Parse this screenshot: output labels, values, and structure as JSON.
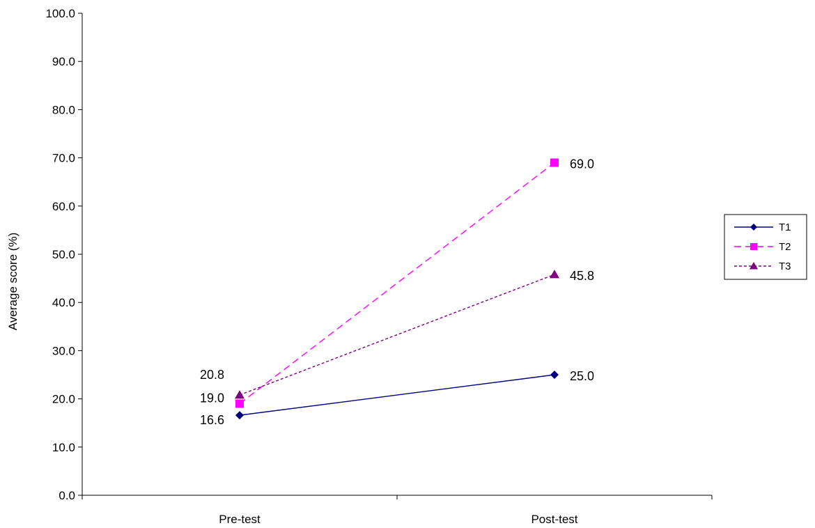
{
  "chart_data": {
    "type": "line",
    "ylabel": "Average score (%)",
    "xlabel": "",
    "ylim": [
      0,
      100
    ],
    "y_ticks": [
      "0.0",
      "10.0",
      "20.0",
      "30.0",
      "40.0",
      "50.0",
      "60.0",
      "70.0",
      "80.0",
      "90.0",
      "100.0"
    ],
    "categories": [
      "Pre-test",
      "Post-test"
    ],
    "grid": false,
    "legend_position": "right",
    "series": [
      {
        "name": "T1",
        "values": [
          16.6,
          25.0
        ],
        "labels": [
          "16.6",
          "25.0"
        ],
        "color": "#000080",
        "marker": "diamond",
        "dash": "solid"
      },
      {
        "name": "T2",
        "values": [
          19.0,
          69.0
        ],
        "labels": [
          "19.0",
          "69.0"
        ],
        "color": "#ff00ff",
        "marker": "square",
        "dash": "dashed"
      },
      {
        "name": "T3",
        "values": [
          20.8,
          45.8
        ],
        "labels": [
          "20.8",
          "45.8"
        ],
        "color": "#800080",
        "marker": "triangle",
        "dash": "dotted"
      }
    ]
  }
}
